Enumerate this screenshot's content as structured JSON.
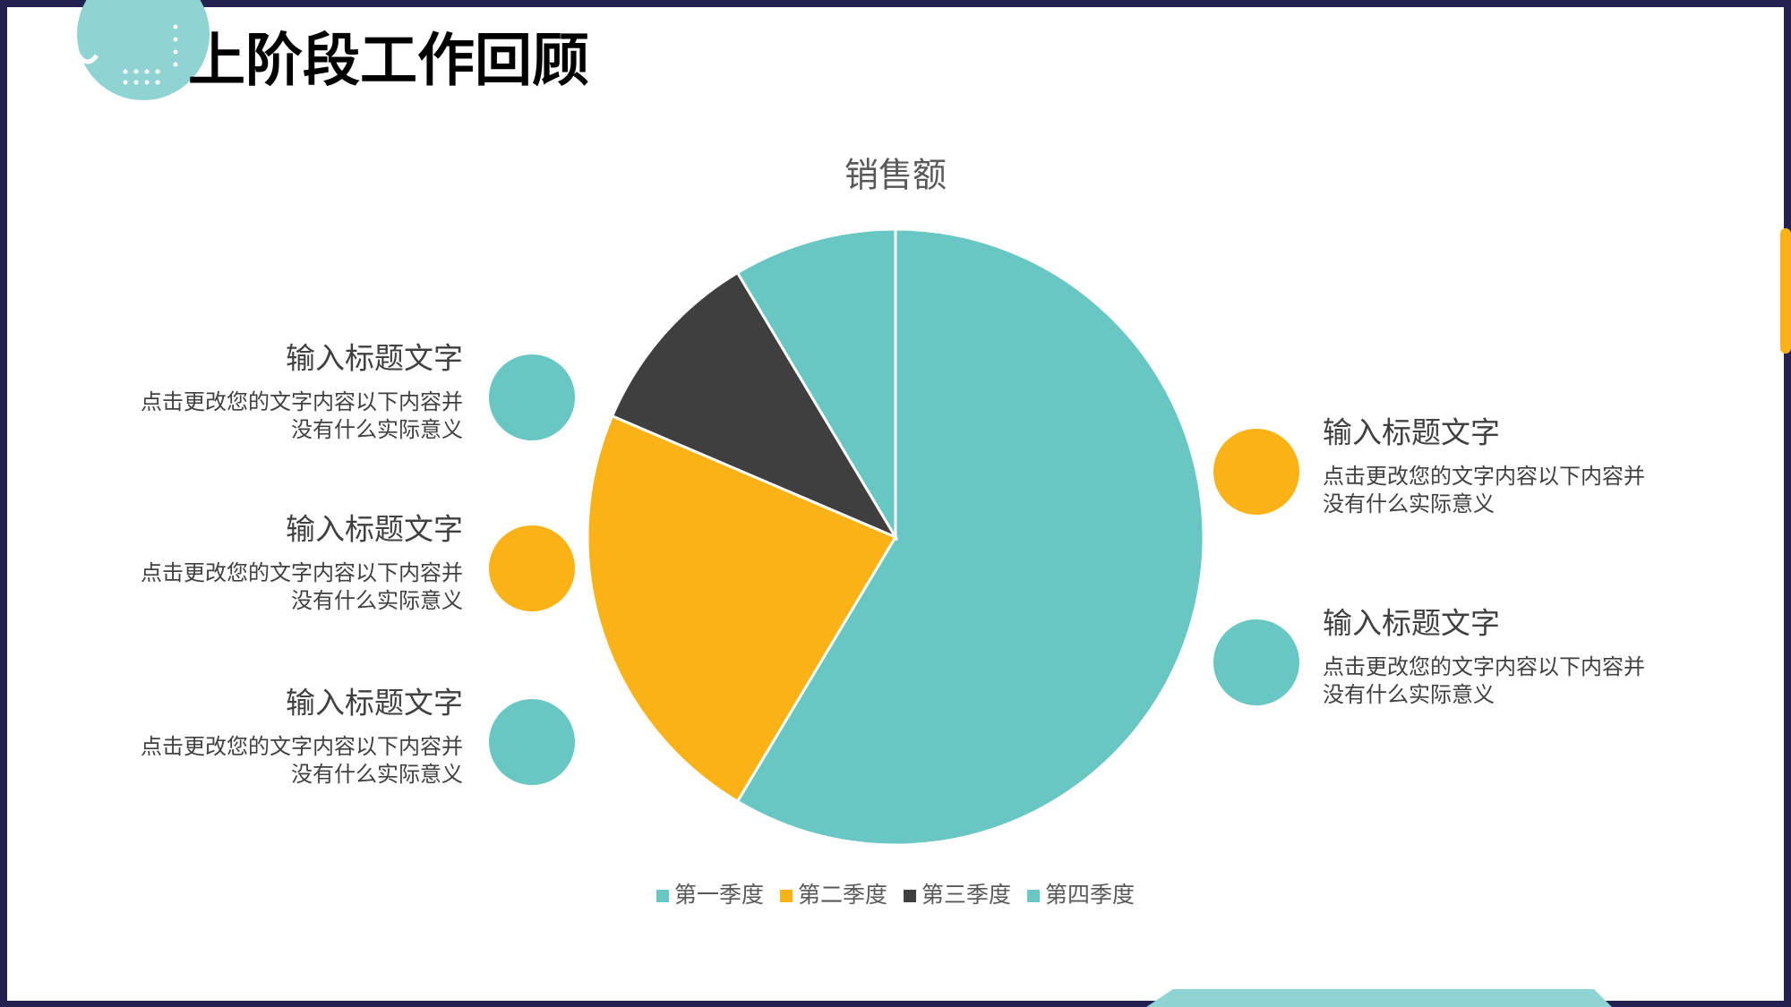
{
  "slide": {
    "title": "上阶段工作回顾",
    "items": [
      {
        "heading": "输入标题文字",
        "lines": [
          "点击更改您的文字内容以下内容并",
          "没有什么实际意义"
        ]
      },
      {
        "heading": "输入标题文字",
        "lines": [
          "点击更改您的文字内容以下内容并",
          "没有什么实际意义"
        ]
      },
      {
        "heading": "输入标题文字",
        "lines": [
          "点击更改您的文字内容以下内容并",
          "没有什么实际意义"
        ]
      },
      {
        "heading": "输入标题文字",
        "lines": [
          "点击更改您的文字内容以下内容并",
          "没有什么实际意义"
        ]
      },
      {
        "heading": "输入标题文字",
        "lines": [
          "点击更改您的文字内容以下内容并",
          "没有什么实际意义"
        ]
      }
    ]
  },
  "chart_data": {
    "type": "pie",
    "title": "销售额",
    "categories": [
      "第一季度",
      "第二季度",
      "第三季度",
      "第四季度"
    ],
    "values": [
      8.2,
      3.2,
      1.4,
      1.2
    ],
    "colors": [
      "#68c7c3",
      "#fbb216",
      "#3f3f3f",
      "#68c7c3"
    ],
    "legend": "bottom"
  }
}
